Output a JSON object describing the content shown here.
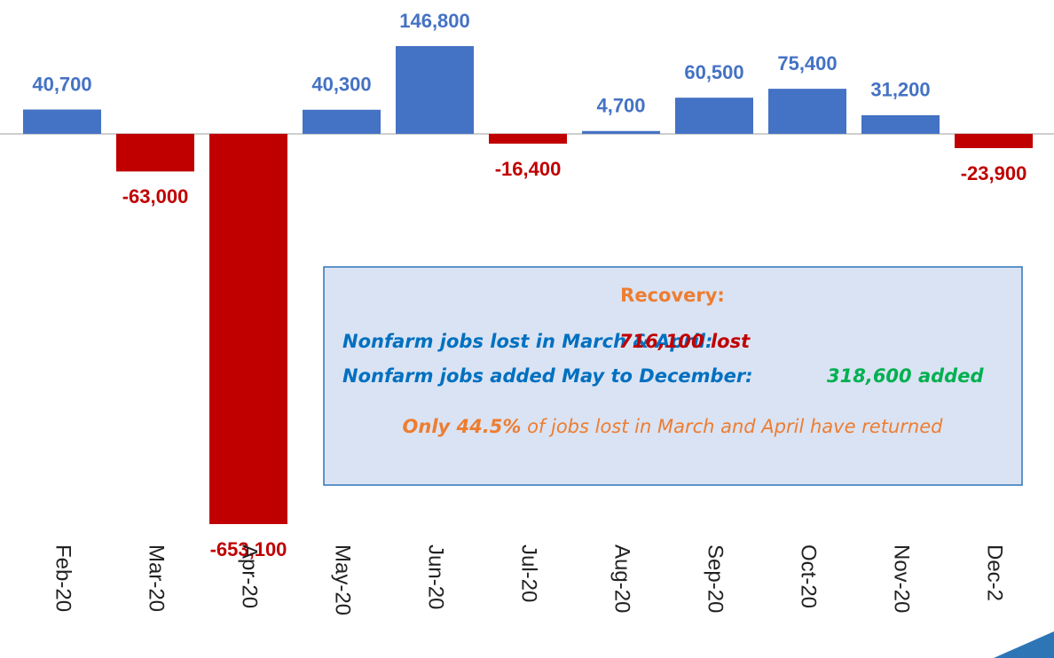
{
  "chart_data": {
    "type": "bar",
    "categories": [
      "Feb-20",
      "Mar-20",
      "Apr-20",
      "May-20",
      "Jun-20",
      "Jul-20",
      "Aug-20",
      "Sep-20",
      "Oct-20",
      "Nov-20",
      "Dec-2"
    ],
    "values": [
      40700,
      -63000,
      -653100,
      40300,
      146800,
      -16400,
      4700,
      60500,
      75400,
      31200,
      -23900
    ],
    "value_labels": [
      "40,700",
      "-63,000",
      "-653,100",
      "40,300",
      "146,800",
      "-16,400",
      "4,700",
      "60,500",
      "75,400",
      "31,200",
      "-23,900"
    ],
    "positive_color": "#4472c4",
    "negative_color": "#c00000",
    "annotation": {
      "title": "Recovery:",
      "lines": [
        {
          "label": "Nonfarm jobs lost in March & April:",
          "value": "716,100 lost"
        },
        {
          "label": "Nonfarm jobs added May to December:",
          "value": "318,600 added"
        }
      ],
      "note": {
        "emphasis": "Only 44.5%",
        "text": " of jobs lost in March and April have returned"
      }
    }
  }
}
